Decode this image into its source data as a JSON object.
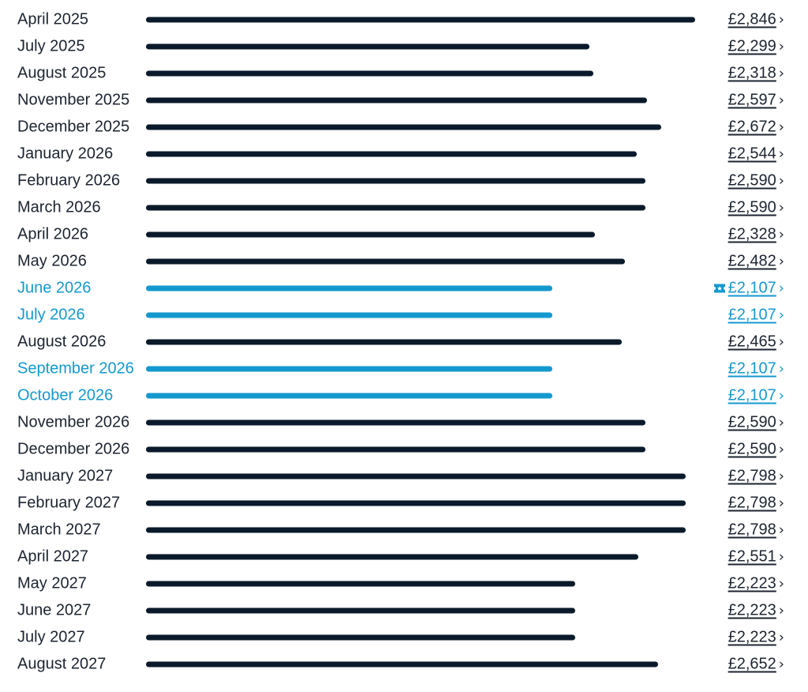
{
  "colors": {
    "default_bar": "#0a1a2a",
    "cheapest_accent": "#1499cf",
    "text": "#1c2430"
  },
  "price_max": 2846,
  "months": [
    {
      "label": "April 2025",
      "price": "£2,846",
      "value": 2846,
      "cheapest": false
    },
    {
      "label": "July 2025",
      "price": "£2,299",
      "value": 2299,
      "cheapest": false
    },
    {
      "label": "August 2025",
      "price": "£2,318",
      "value": 2318,
      "cheapest": false
    },
    {
      "label": "November 2025",
      "price": "£2,597",
      "value": 2597,
      "cheapest": false
    },
    {
      "label": "December 2025",
      "price": "£2,672",
      "value": 2672,
      "cheapest": false
    },
    {
      "label": "January 2026",
      "price": "£2,544",
      "value": 2544,
      "cheapest": false
    },
    {
      "label": "February 2026",
      "price": "£2,590",
      "value": 2590,
      "cheapest": false
    },
    {
      "label": "March 2026",
      "price": "£2,590",
      "value": 2590,
      "cheapest": false
    },
    {
      "label": "April 2026",
      "price": "£2,328",
      "value": 2328,
      "cheapest": false
    },
    {
      "label": "May 2026",
      "price": "£2,482",
      "value": 2482,
      "cheapest": false
    },
    {
      "label": "June 2026",
      "price": "£2,107",
      "value": 2107,
      "cheapest": true,
      "deal_icon": "ticket-icon"
    },
    {
      "label": "July 2026",
      "price": "£2,107",
      "value": 2107,
      "cheapest": true
    },
    {
      "label": "August 2026",
      "price": "£2,465",
      "value": 2465,
      "cheapest": false
    },
    {
      "label": "September 2026",
      "price": "£2,107",
      "value": 2107,
      "cheapest": true
    },
    {
      "label": "October 2026",
      "price": "£2,107",
      "value": 2107,
      "cheapest": true
    },
    {
      "label": "November 2026",
      "price": "£2,590",
      "value": 2590,
      "cheapest": false
    },
    {
      "label": "December 2026",
      "price": "£2,590",
      "value": 2590,
      "cheapest": false
    },
    {
      "label": "January 2027",
      "price": "£2,798",
      "value": 2798,
      "cheapest": false
    },
    {
      "label": "February 2027",
      "price": "£2,798",
      "value": 2798,
      "cheapest": false
    },
    {
      "label": "March 2027",
      "price": "£2,798",
      "value": 2798,
      "cheapest": false
    },
    {
      "label": "April 2027",
      "price": "£2,551",
      "value": 2551,
      "cheapest": false
    },
    {
      "label": "May 2027",
      "price": "£2,223",
      "value": 2223,
      "cheapest": false
    },
    {
      "label": "June 2027",
      "price": "£2,223",
      "value": 2223,
      "cheapest": false
    },
    {
      "label": "July 2027",
      "price": "£2,223",
      "value": 2223,
      "cheapest": false
    },
    {
      "label": "August 2027",
      "price": "£2,652",
      "value": 2652,
      "cheapest": false
    }
  ]
}
